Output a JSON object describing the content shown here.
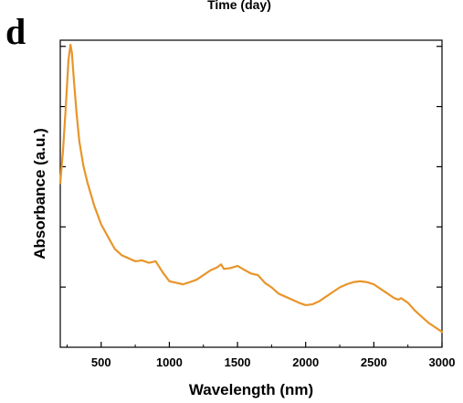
{
  "header": {
    "cut_label": "Time (day)",
    "panel_letter": "d"
  },
  "chart_data": {
    "type": "line",
    "xlabel": "Wavelength (nm)",
    "ylabel": "Absorbance (a.u.)",
    "xlim": [
      200,
      3000
    ],
    "ylim": [
      0,
      1
    ],
    "x_ticks": [
      500,
      1000,
      1500,
      2000,
      2500,
      3000
    ],
    "x_tick_labels": [
      "500",
      "1000",
      "1500",
      "2000",
      "2500",
      "3000"
    ],
    "y_tick_labels_shown": false,
    "grid": false,
    "line_color": "#E8952A",
    "series": [
      {
        "x": [
          200,
          220,
          240,
          260,
          275,
          285,
          300,
          320,
          340,
          370,
          400,
          450,
          500,
          550,
          600,
          650,
          700,
          750,
          800,
          850,
          900,
          950,
          1000,
          1050,
          1100,
          1150,
          1200,
          1250,
          1300,
          1350,
          1380,
          1400,
          1450,
          1500,
          1550,
          1600,
          1650,
          1700,
          1750,
          1800,
          1850,
          1900,
          1950,
          2000,
          2050,
          2100,
          2150,
          2200,
          2250,
          2300,
          2350,
          2400,
          2450,
          2500,
          2550,
          2600,
          2650,
          2680,
          2700,
          2750,
          2800,
          2850,
          2900,
          2950,
          3000
        ],
        "y": [
          0.535,
          0.64,
          0.78,
          0.935,
          0.985,
          0.96,
          0.87,
          0.76,
          0.67,
          0.59,
          0.535,
          0.46,
          0.4,
          0.36,
          0.32,
          0.3,
          0.29,
          0.28,
          0.283,
          0.275,
          0.28,
          0.245,
          0.215,
          0.21,
          0.205,
          0.212,
          0.22,
          0.235,
          0.25,
          0.26,
          0.27,
          0.255,
          0.258,
          0.265,
          0.252,
          0.24,
          0.235,
          0.21,
          0.195,
          0.175,
          0.165,
          0.155,
          0.145,
          0.137,
          0.14,
          0.15,
          0.165,
          0.18,
          0.195,
          0.205,
          0.212,
          0.215,
          0.212,
          0.205,
          0.19,
          0.175,
          0.16,
          0.155,
          0.16,
          0.145,
          0.12,
          0.1,
          0.08,
          0.065,
          0.05
        ]
      }
    ]
  }
}
